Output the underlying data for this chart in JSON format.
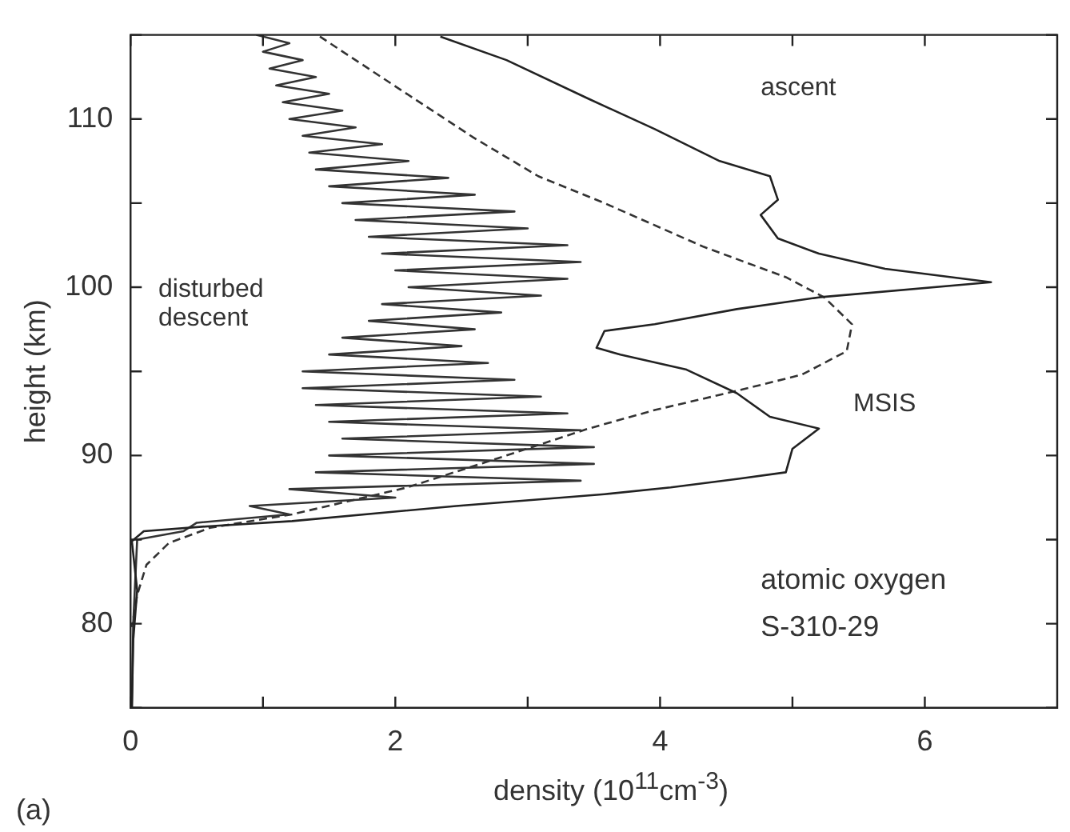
{
  "chart_data": {
    "type": "line",
    "xlabel": "density (10$^{11}$cm$^{-3}$)",
    "ylabel": "height (km)",
    "xlim": [
      0,
      7
    ],
    "ylim": [
      75,
      115
    ],
    "xticks": [
      0,
      {
        "value": 1,
        "label": null
      },
      2,
      {
        "value": 3,
        "label": null
      },
      4,
      {
        "value": 5,
        "label": null
      },
      6
    ],
    "yticks": [
      {
        "value": 75,
        "label": null
      },
      80,
      {
        "value": 85,
        "label": null
      },
      90,
      {
        "value": 95,
        "label": null
      },
      100,
      {
        "value": 105,
        "label": null
      },
      110,
      {
        "value": 115,
        "label": null
      }
    ],
    "marker": "none",
    "series": [
      {
        "name": "ascent",
        "color": "#222222",
        "line_style": "solid",
        "x": [
          2.34,
          2.84,
          3.46,
          3.96,
          4.45,
          4.83,
          4.89,
          4.76,
          4.89,
          5.2,
          5.7,
          6.5,
          5.2,
          4.58,
          3.96,
          3.58,
          3.52,
          3.7,
          4.2,
          4.58,
          4.83,
          5.2,
          5.0,
          4.95,
          4.58,
          4.08,
          3.58,
          2.46,
          1.22,
          0.6,
          0.1,
          0.01,
          0.05,
          0.02,
          0.01
        ],
        "values": [
          114.9,
          113.5,
          111.2,
          109.4,
          107.5,
          106.6,
          105.2,
          104.3,
          102.9,
          102.0,
          101.1,
          100.3,
          99.4,
          98.7,
          97.8,
          97.4,
          96.4,
          96.0,
          95.1,
          93.7,
          92.3,
          91.6,
          90.4,
          89.0,
          88.6,
          88.1,
          87.7,
          87.0,
          86.1,
          85.8,
          85.5,
          84.9,
          82,
          79,
          75
        ]
      },
      {
        "name": "MSIS",
        "color": "#333333",
        "line_style": "dashed",
        "x": [
          1.43,
          1.97,
          2.59,
          3.08,
          3.58,
          4.33,
          4.95,
          5.24,
          5.45,
          5.41,
          5.07,
          4.61,
          3.96,
          3.46,
          2.84,
          2.09,
          1.22,
          0.6,
          0.29,
          0.12,
          0.05,
          0.01
        ],
        "values": [
          114.9,
          112.1,
          108.9,
          106.6,
          105.0,
          102.4,
          100.6,
          99.4,
          97.8,
          96.2,
          94.8,
          93.9,
          92.7,
          91.6,
          90.0,
          88.1,
          86.5,
          85.7,
          84.8,
          83.5,
          81.7,
          79.8
        ]
      },
      {
        "name": "disturbed descent",
        "color": "#333333",
        "line_style": "solid",
        "x": [
          0.95,
          1.2,
          1.0,
          1.3,
          1.05,
          1.4,
          1.1,
          1.5,
          1.15,
          1.6,
          1.2,
          1.7,
          1.3,
          1.9,
          1.35,
          2.1,
          1.4,
          2.4,
          1.5,
          2.6,
          1.6,
          2.9,
          1.7,
          3.0,
          1.8,
          3.3,
          1.9,
          3.4,
          2.0,
          3.3,
          2.1,
          3.1,
          1.9,
          2.8,
          1.8,
          2.6,
          1.6,
          2.5,
          1.5,
          2.7,
          1.3,
          2.9,
          1.3,
          3.1,
          1.4,
          3.3,
          1.5,
          3.4,
          1.6,
          3.5,
          1.5,
          3.5,
          1.4,
          3.4,
          1.2,
          2.0,
          0.9,
          1.2,
          0.5,
          0.4,
          0.05,
          0.02,
          0.01
        ],
        "values": [
          115,
          114.5,
          114,
          113.5,
          113,
          112.5,
          112,
          111.5,
          111,
          110.5,
          110,
          109.5,
          109,
          108.5,
          108,
          107.5,
          107,
          106.5,
          106,
          105.5,
          105,
          104.5,
          104,
          103.5,
          103,
          102.5,
          102,
          101.5,
          101,
          100.5,
          100,
          99.5,
          99,
          98.5,
          98,
          97.5,
          97,
          96.5,
          96,
          95.5,
          95,
          94.5,
          94,
          93.5,
          93,
          92.5,
          92,
          91.5,
          91,
          90.5,
          90,
          89.5,
          89,
          88.5,
          88,
          87.5,
          87,
          86.5,
          86,
          85.5,
          85,
          80,
          75
        ]
      }
    ],
    "annotations": [
      "atomic oxygen",
      "S-310-29",
      "(a)"
    ]
  }
}
